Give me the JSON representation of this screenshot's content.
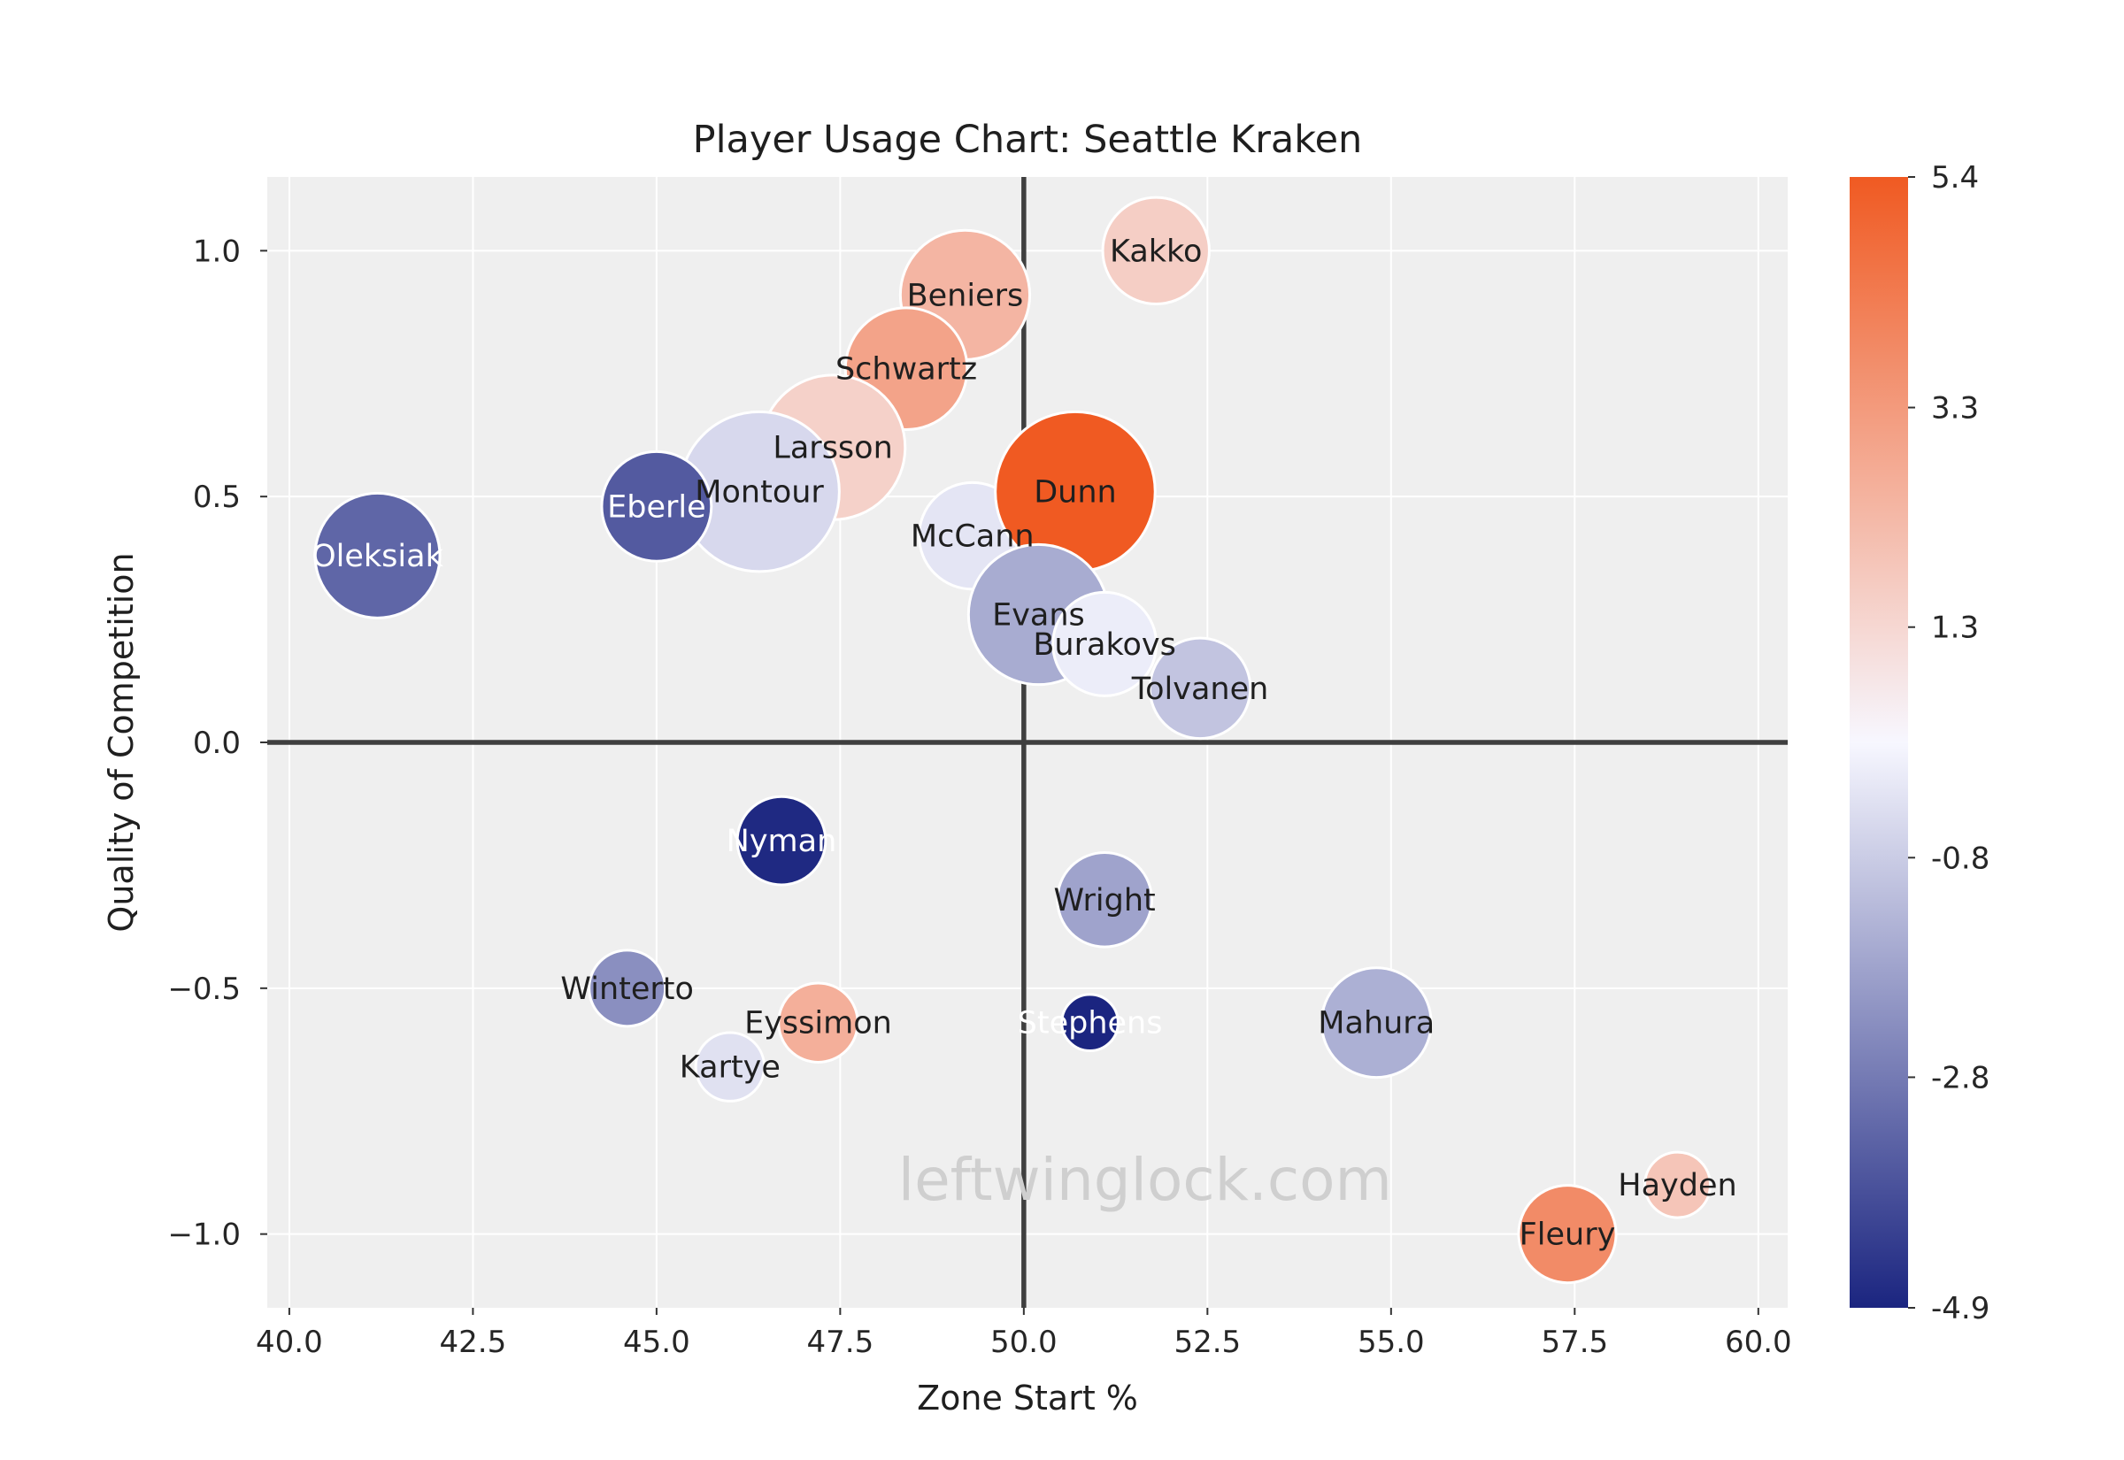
{
  "chart_data": {
    "type": "scatter",
    "title": "Player Usage Chart: Seattle Kraken",
    "xlabel": "Zone Start %",
    "ylabel": "Quality of Competition",
    "xlim": [
      39.7,
      60.4
    ],
    "ylim": [
      -1.15,
      1.15
    ],
    "xticks": [
      40.0,
      42.5,
      45.0,
      47.5,
      50.0,
      52.5,
      55.0,
      57.5,
      60.0
    ],
    "xtick_labels": [
      "40.0",
      "42.5",
      "45.0",
      "47.5",
      "50.0",
      "52.5",
      "55.0",
      "57.5",
      "60.0"
    ],
    "yticks": [
      1.0,
      0.5,
      0.0,
      -0.5,
      -1.0
    ],
    "ytick_labels": [
      "1.0",
      "0.5",
      "0.0",
      "−0.5",
      "−1.0"
    ],
    "grid": true,
    "reference_lines": {
      "x": 50.0,
      "y": 0.0
    },
    "colorbar": {
      "min": -4.9,
      "max": 5.4,
      "ticks": [
        5.4,
        3.3,
        1.3,
        -0.8,
        -2.8,
        -4.9
      ],
      "tick_labels": [
        "5.4",
        "3.3",
        "1.3",
        "-0.8",
        "-2.8",
        "-4.9"
      ],
      "colors": {
        "low": "#1b2580",
        "mid": "#f7f7ff",
        "high": "#f05a22"
      },
      "mid_value": 0.25
    },
    "points": [
      {
        "name": "Kakko",
        "x": 51.8,
        "y": 1.0,
        "size": 0.7,
        "color_value": 1.6
      },
      {
        "name": "Beniers",
        "x": 49.2,
        "y": 0.91,
        "size": 0.85,
        "color_value": 2.4
      },
      {
        "name": "Schwartz",
        "x": 48.4,
        "y": 0.76,
        "size": 0.8,
        "color_value": 3.0
      },
      {
        "name": "Larsson",
        "x": 47.4,
        "y": 0.6,
        "size": 0.95,
        "color_value": 1.5
      },
      {
        "name": "Montour",
        "x": 46.4,
        "y": 0.51,
        "size": 1.05,
        "color_value": -0.5
      },
      {
        "name": "Eberle",
        "x": 45.0,
        "y": 0.48,
        "size": 0.72,
        "color_value": -3.6
      },
      {
        "name": "Oleksiak",
        "x": 41.2,
        "y": 0.38,
        "size": 0.82,
        "color_value": -3.3
      },
      {
        "name": "McCann",
        "x": 49.3,
        "y": 0.42,
        "size": 0.7,
        "color_value": -0.2
      },
      {
        "name": "Dunn",
        "x": 50.7,
        "y": 0.51,
        "size": 1.05,
        "color_value": 5.4
      },
      {
        "name": "Evans",
        "x": 50.2,
        "y": 0.26,
        "size": 0.92,
        "color_value": -1.6
      },
      {
        "name": "Burakovs",
        "x": 51.1,
        "y": 0.2,
        "size": 0.68,
        "color_value": 0.0
      },
      {
        "name": "Tolvanen",
        "x": 52.4,
        "y": 0.11,
        "size": 0.66,
        "color_value": -1.0
      },
      {
        "name": "Nyman",
        "x": 46.7,
        "y": -0.2,
        "size": 0.58,
        "color_value": -4.8
      },
      {
        "name": "Wright",
        "x": 51.1,
        "y": -0.32,
        "size": 0.62,
        "color_value": -1.8
      },
      {
        "name": "Winterto",
        "x": 44.6,
        "y": -0.5,
        "size": 0.5,
        "color_value": -2.3
      },
      {
        "name": "Eyssimon",
        "x": 47.2,
        "y": -0.57,
        "size": 0.52,
        "color_value": 2.6
      },
      {
        "name": "Stephens",
        "x": 50.9,
        "y": -0.57,
        "size": 0.37,
        "color_value": -4.9
      },
      {
        "name": "Mahura",
        "x": 54.8,
        "y": -0.57,
        "size": 0.72,
        "color_value": -1.5
      },
      {
        "name": "Kartye",
        "x": 46.0,
        "y": -0.66,
        "size": 0.45,
        "color_value": -0.3
      },
      {
        "name": "Hayden",
        "x": 58.9,
        "y": -0.9,
        "size": 0.43,
        "color_value": 1.9
      },
      {
        "name": "Fleury",
        "x": 57.4,
        "y": -1.0,
        "size": 0.64,
        "color_value": 3.8
      }
    ],
    "annotations": [
      {
        "text": "leftwinglock.com",
        "x": 51.65,
        "y": -0.93
      }
    ]
  },
  "colors": {
    "plot_background": "#efefef",
    "grid": "#ffffff",
    "reference_line": "#3f3f3f",
    "text": "#1f1f1f",
    "watermark": "#cfcfcf"
  }
}
